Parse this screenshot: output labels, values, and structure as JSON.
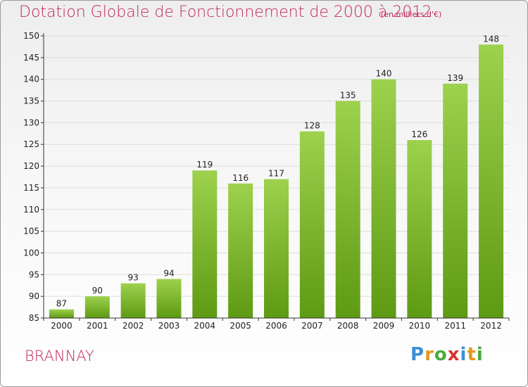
{
  "title": "Dotation Globale de Fonctionnement de 2000 à 2012",
  "unit": "(en milliers d'€)",
  "commune": "BRANNAY",
  "logo": {
    "text": "Proxiti",
    "letters": [
      {
        "ch": "P",
        "color": "#3b8fd6"
      },
      {
        "ch": "r",
        "color": "#e39a1e"
      },
      {
        "ch": "o",
        "color": "#4aaa3c"
      },
      {
        "ch": "x",
        "color": "#d8322e"
      },
      {
        "ch": "i",
        "color": "#3b8fd6"
      },
      {
        "ch": "t",
        "color": "#e39a1e"
      },
      {
        "ch": "i",
        "color": "#4aaa3c"
      }
    ]
  },
  "colors": {
    "accent": "#c4275e",
    "bar_top": "#9dd14e",
    "bar_bottom": "#5e9a14",
    "grid": "#dddddd"
  },
  "chart_data": {
    "type": "bar",
    "categories": [
      "2000",
      "2001",
      "2002",
      "2003",
      "2004",
      "2005",
      "2006",
      "2007",
      "2008",
      "2009",
      "2010",
      "2011",
      "2012"
    ],
    "values": [
      87,
      90,
      93,
      94,
      119,
      116,
      117,
      128,
      135,
      140,
      126,
      139,
      148
    ],
    "title": "Dotation Globale de Fonctionnement de 2000 à 2012",
    "ylim": [
      85,
      150
    ],
    "yticks": [
      85,
      90,
      95,
      100,
      105,
      110,
      115,
      120,
      125,
      130,
      135,
      140,
      145,
      150
    ],
    "grid": true
  }
}
